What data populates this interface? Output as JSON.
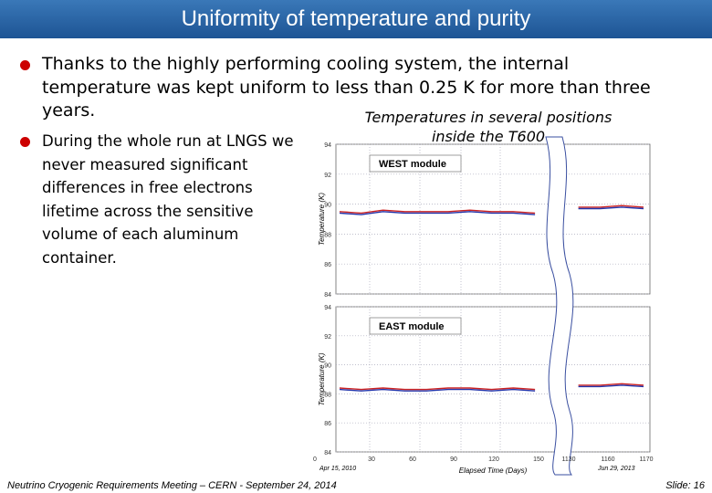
{
  "header": {
    "title": "Uniformity of temperature and purity"
  },
  "bullets": [
    "Thanks to the highly performing cooling system, the internal temperature was kept uniform to less than 0.25 K for more than three years.",
    "During the whole run at LNGS we never measured significant differences in free electrons lifetime across the sensitive volume of each aluminum container."
  ],
  "caption": [
    "Temperatures in several positions",
    "inside the T600"
  ],
  "figure": {
    "x_label": "Elapsed Time (Days)",
    "start_date": "Apr 15, 2010",
    "end_date": "Jun 29, 2013",
    "x_tick_labels": [
      "0",
      "30",
      "60",
      "90",
      "120",
      "150",
      "1130",
      "1160",
      "1170"
    ],
    "panels": [
      {
        "label": "WEST module",
        "y_label": "Temperature (K)",
        "ylim": [
          84,
          94
        ],
        "yticks": [
          84,
          86,
          88,
          90,
          92,
          94
        ],
        "series": [
          {
            "color": "#cc2222",
            "values": [
              89.5,
              89.4,
              89.6,
              89.5,
              89.5,
              89.5,
              89.6,
              89.5,
              89.5,
              89.4,
              null,
              89.8,
              89.8,
              89.9,
              89.8
            ]
          },
          {
            "color": "#2233aa",
            "values": [
              89.4,
              89.3,
              89.5,
              89.4,
              89.4,
              89.4,
              89.5,
              89.4,
              89.4,
              89.3,
              null,
              89.7,
              89.7,
              89.8,
              89.7
            ]
          }
        ]
      },
      {
        "label": "EAST module",
        "y_label": "Temperature (K)",
        "ylim": [
          84,
          94
        ],
        "yticks": [
          84,
          86,
          88,
          90,
          92,
          94
        ],
        "series": [
          {
            "color": "#cc2222",
            "values": [
              88.4,
              88.3,
              88.4,
              88.3,
              88.3,
              88.4,
              88.4,
              88.3,
              88.4,
              88.3,
              null,
              88.6,
              88.6,
              88.7,
              88.6
            ]
          },
          {
            "color": "#2233aa",
            "values": [
              88.3,
              88.2,
              88.3,
              88.2,
              88.2,
              88.3,
              88.3,
              88.2,
              88.3,
              88.2,
              null,
              88.5,
              88.5,
              88.6,
              88.5
            ]
          }
        ]
      }
    ]
  },
  "footer": {
    "meeting": "Neutrino Cryogenic Requirements Meeting – CERN - September 24, 2014",
    "slide": "Slide: 16"
  }
}
